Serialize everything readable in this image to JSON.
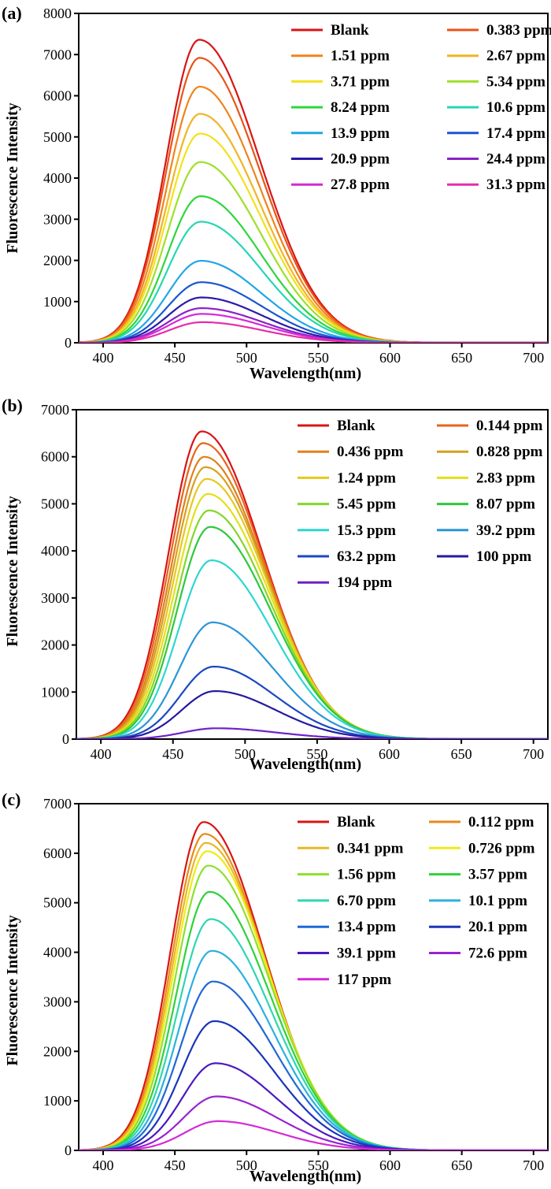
{
  "figure": {
    "panels": [
      {
        "letter": "(a)"
      },
      {
        "letter": "(b)"
      },
      {
        "letter": "(c)"
      }
    ]
  },
  "chart_data": [
    {
      "type": "line",
      "panel_label": "(a)",
      "xlabel": "Wavelength(nm)",
      "ylabel": "Fluorescence Intensity",
      "xlim": [
        383,
        710
      ],
      "ylim": [
        0,
        8000
      ],
      "xticks": [
        400,
        450,
        500,
        550,
        600,
        650,
        700
      ],
      "yticks": [
        0,
        1000,
        2000,
        3000,
        4000,
        5000,
        6000,
        7000,
        8000
      ],
      "peak_x": 467,
      "grid": false,
      "legend_position": "top-right",
      "series": [
        {
          "name": "Blank",
          "color": "#d91414",
          "peak": 7360
        },
        {
          "name": "0.383 ppm",
          "color": "#e8541a",
          "peak": 6920
        },
        {
          "name": "1.51 ppm",
          "color": "#f0841c",
          "peak": 6220
        },
        {
          "name": "2.67 ppm",
          "color": "#f0b524",
          "peak": 5560
        },
        {
          "name": "3.71 ppm",
          "color": "#f2e21c",
          "peak": 5080
        },
        {
          "name": "5.34 ppm",
          "color": "#9ee02a",
          "peak": 4390
        },
        {
          "name": "8.24 ppm",
          "color": "#2ed63c",
          "peak": 3560
        },
        {
          "name": "10.6 ppm",
          "color": "#26d6b4",
          "peak": 2940
        },
        {
          "name": "13.9 ppm",
          "color": "#22a6e6",
          "peak": 1990
        },
        {
          "name": "17.4 ppm",
          "color": "#1a56d0",
          "peak": 1470
        },
        {
          "name": "20.9 ppm",
          "color": "#2a1aa8",
          "peak": 1100
        },
        {
          "name": "24.4 ppm",
          "color": "#8a22c8",
          "peak": 840
        },
        {
          "name": "27.8 ppm",
          "color": "#d628d6",
          "peak": 700
        },
        {
          "name": "31.3 ppm",
          "color": "#e82ca8",
          "peak": 500
        }
      ]
    },
    {
      "type": "line",
      "panel_label": "(b)",
      "xlabel": "Wavelength(nm)",
      "ylabel": "Fluorescence Intensity",
      "xlim": [
        383,
        710
      ],
      "ylim": [
        0,
        7000
      ],
      "xticks": [
        400,
        450,
        500,
        550,
        600,
        650,
        700
      ],
      "yticks": [
        0,
        1000,
        2000,
        3000,
        4000,
        5000,
        6000,
        7000
      ],
      "peak_x": 470,
      "grid": false,
      "legend_position": "top-right",
      "series": [
        {
          "name": "Blank",
          "color": "#d91414",
          "peak": 6540
        },
        {
          "name": "0.144 ppm",
          "color": "#e8621c",
          "peak": 6290
        },
        {
          "name": "0.436 ppm",
          "color": "#e0801c",
          "peak": 6000
        },
        {
          "name": "0.828 ppm",
          "color": "#d6a020",
          "peak": 5780
        },
        {
          "name": "1.24 ppm",
          "color": "#e6c81c",
          "peak": 5530
        },
        {
          "name": "2.83 ppm",
          "color": "#e2e01a",
          "peak": 5210
        },
        {
          "name": "5.45 ppm",
          "color": "#82d62a",
          "peak": 4860
        },
        {
          "name": "8.07 ppm",
          "color": "#2ec83c",
          "peak": 4510
        },
        {
          "name": "15.3 ppm",
          "color": "#2ed6d0",
          "peak": 3800
        },
        {
          "name": "39.2 ppm",
          "color": "#2a96d6",
          "peak": 2480
        },
        {
          "name": "63.2 ppm",
          "color": "#1a48c0",
          "peak": 1540
        },
        {
          "name": "100 ppm",
          "color": "#241aa0",
          "peak": 1020
        },
        {
          "name": "194 ppm",
          "color": "#6e22c8",
          "peak": 230
        }
      ]
    },
    {
      "type": "line",
      "panel_label": "(c)",
      "xlabel": "Wavelength(nm)",
      "ylabel": "Fluorescence Intensity",
      "xlim": [
        383,
        710
      ],
      "ylim": [
        0,
        7000
      ],
      "xticks": [
        400,
        450,
        500,
        550,
        600,
        650,
        700
      ],
      "yticks": [
        0,
        1000,
        2000,
        3000,
        4000,
        5000,
        6000,
        7000
      ],
      "peak_x": 470,
      "grid": false,
      "legend_position": "top-right",
      "series": [
        {
          "name": "Blank",
          "color": "#d91414",
          "peak": 6630
        },
        {
          "name": "0.112 ppm",
          "color": "#e88a1a",
          "peak": 6390
        },
        {
          "name": "0.341 ppm",
          "color": "#e8b824",
          "peak": 6210
        },
        {
          "name": "0.726 ppm",
          "color": "#f0ea18",
          "peak": 6040
        },
        {
          "name": "1.56 ppm",
          "color": "#8ee02a",
          "peak": 5750
        },
        {
          "name": "3.57 ppm",
          "color": "#2ed23a",
          "peak": 5220
        },
        {
          "name": "6.70 ppm",
          "color": "#2ed6b0",
          "peak": 4670
        },
        {
          "name": "10.1 ppm",
          "color": "#2ab0e0",
          "peak": 4030
        },
        {
          "name": "13.4 ppm",
          "color": "#2068d6",
          "peak": 3410
        },
        {
          "name": "20.1 ppm",
          "color": "#1a34b8",
          "peak": 2610
        },
        {
          "name": "39.1 ppm",
          "color": "#4a1ac0",
          "peak": 1760
        },
        {
          "name": "72.6 ppm",
          "color": "#9a22d0",
          "peak": 1090
        },
        {
          "name": "117 ppm",
          "color": "#d42ad6",
          "peak": 590
        }
      ]
    }
  ]
}
